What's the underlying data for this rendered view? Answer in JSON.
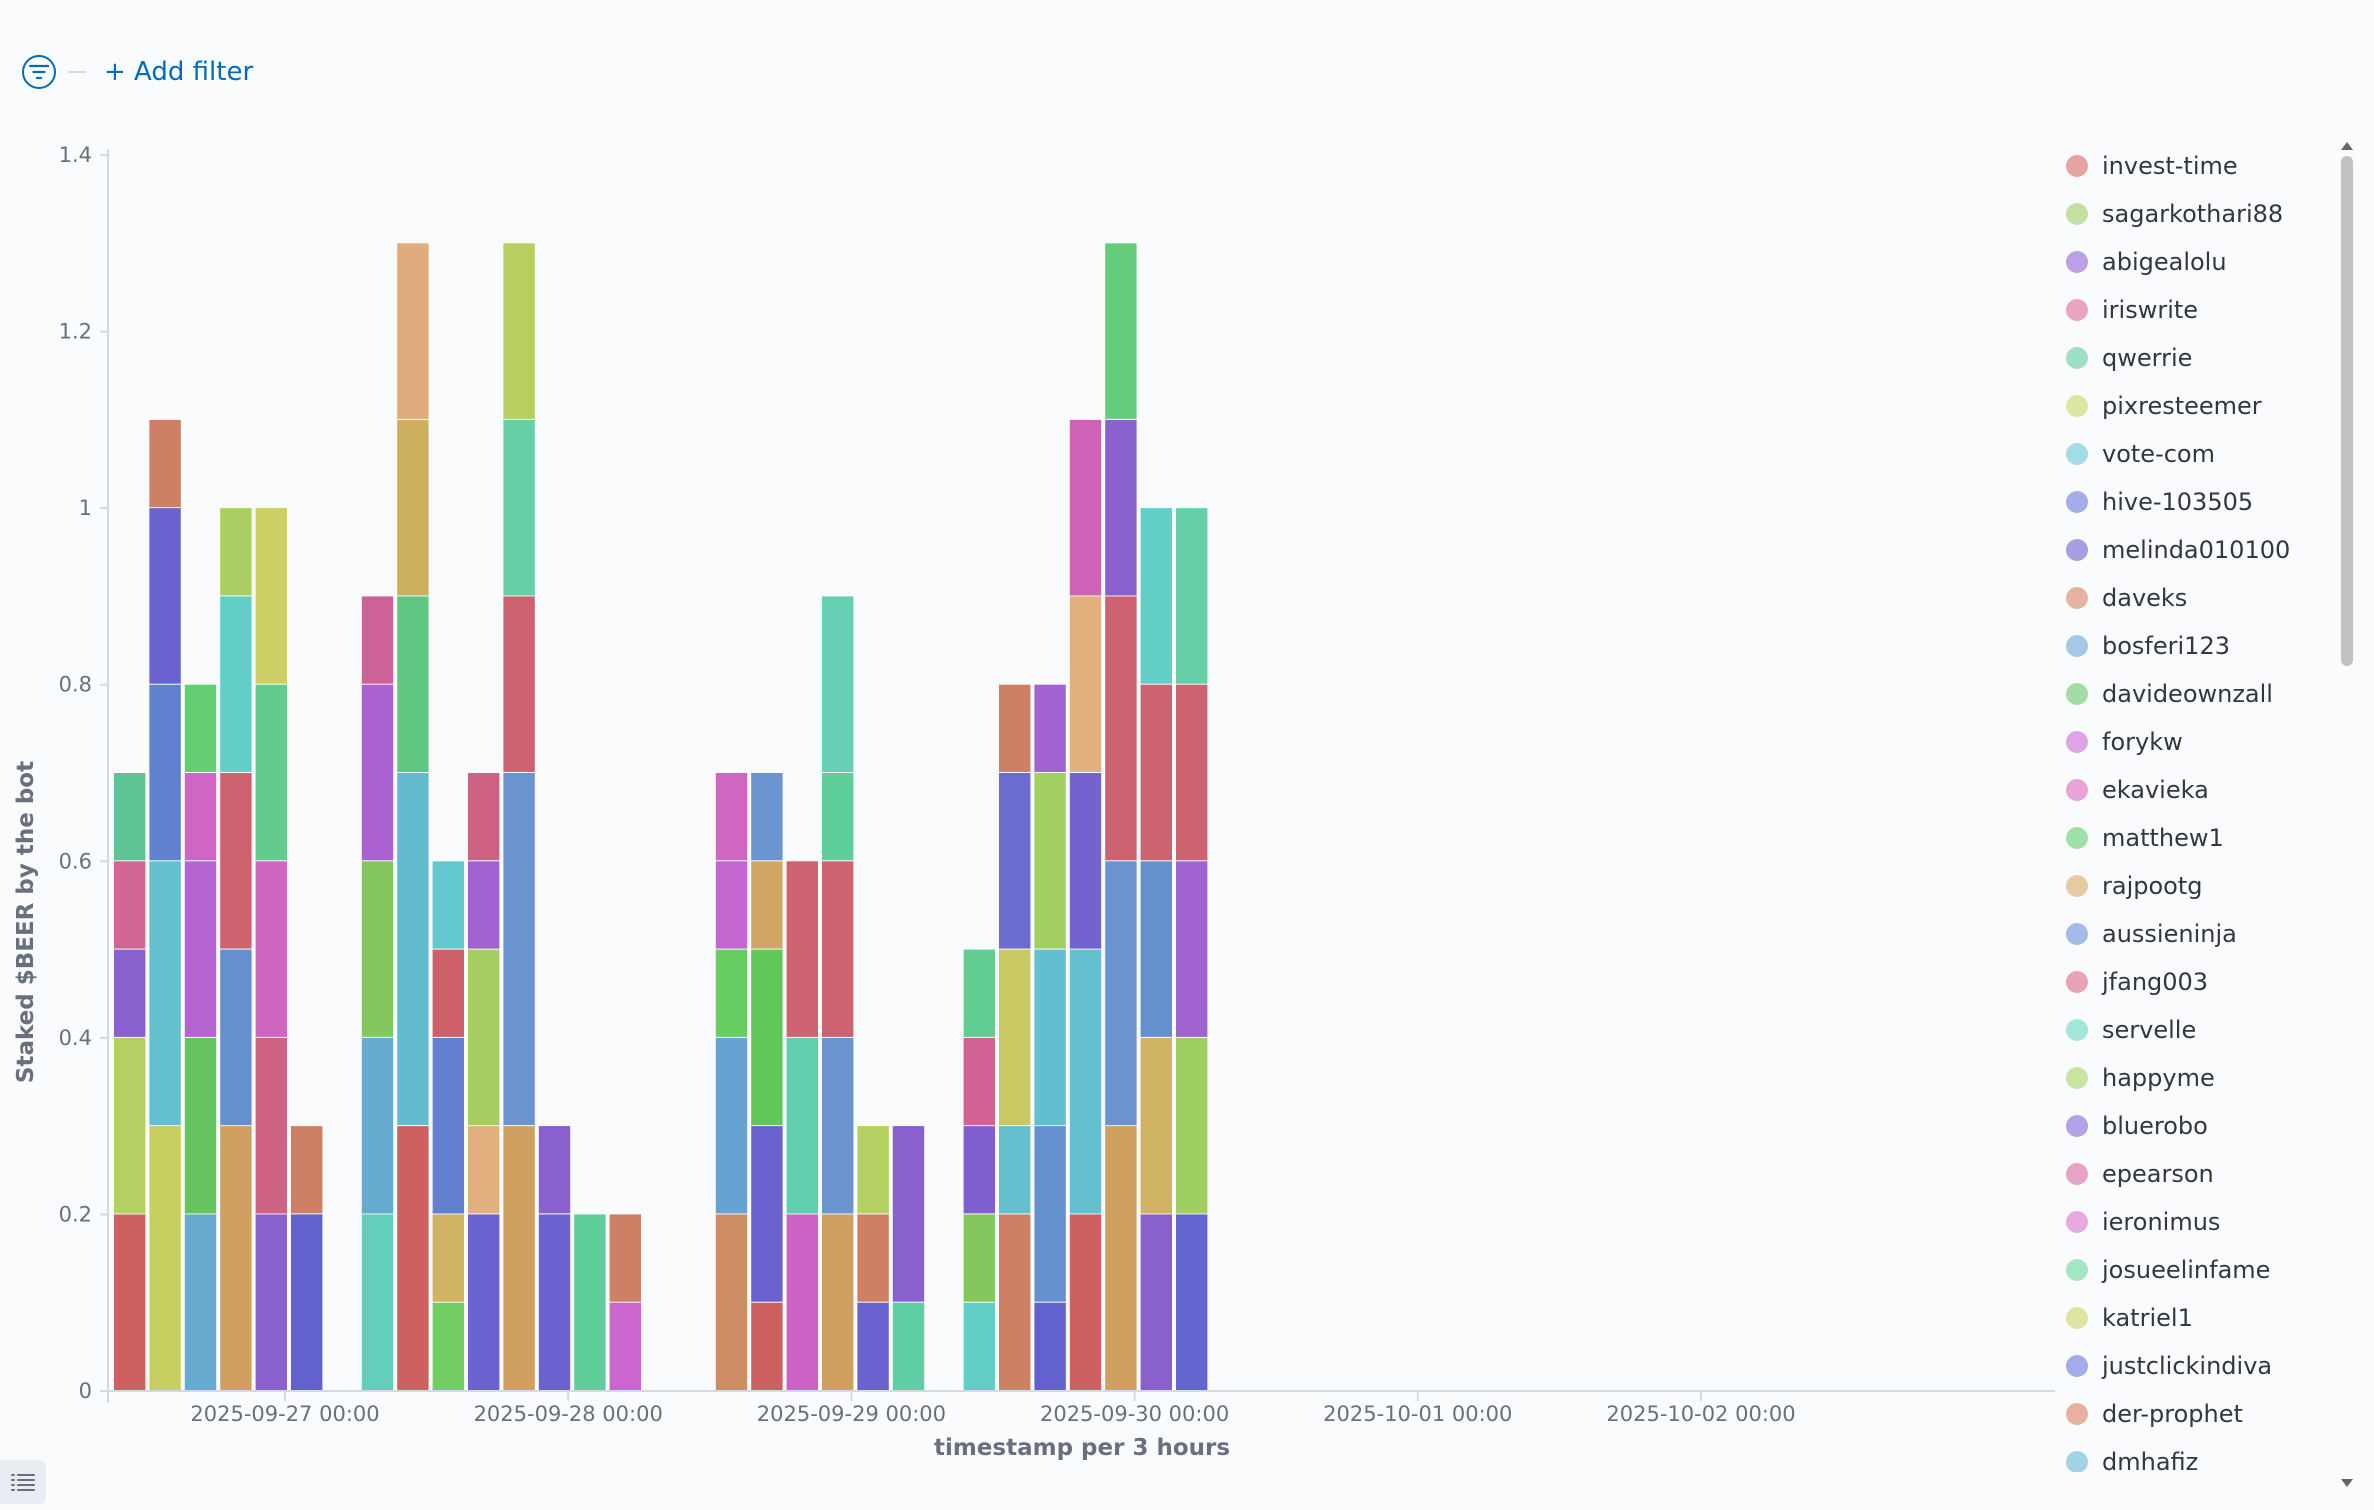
{
  "filter_bar": {
    "add_filter_label": "+ Add filter"
  },
  "chart_data": {
    "type": "bar",
    "stacked": true,
    "xlabel": "timestamp per 3 hours",
    "ylabel": "Staked $BEER by the bot",
    "ylim": [
      0,
      1.4
    ],
    "yticks": [
      "0",
      "0.2",
      "0.4",
      "0.6",
      "0.8",
      "1",
      "1.2",
      "1.4"
    ],
    "xlim": [
      "2025-09-26 09:00",
      "2025-10-03 06:00"
    ],
    "xticks": [
      "2025-09-27 00:00",
      "2025-09-28 00:00",
      "2025-09-29 00:00",
      "2025-09-30 00:00",
      "2025-10-01 00:00",
      "2025-10-02 00:00"
    ],
    "grid": false,
    "legend_position": "right",
    "series_names": [
      "invest-time",
      "sagarkothari88",
      "abigealolu",
      "iriswrite",
      "qwerrie",
      "pixresteemer",
      "vote-com",
      "hive-103505",
      "melinda010100",
      "daveks",
      "bosferi123",
      "davideownzall",
      "forykw",
      "ekavieka",
      "matthew1",
      "rajpootg",
      "aussieninja",
      "jfang003",
      "servelle",
      "happyme",
      "bluerobo",
      "epearson",
      "ieronimus",
      "josueelinfame",
      "katriel1",
      "justclickindiva",
      "der-prophet",
      "dmhafiz"
    ],
    "series_colors": [
      "#e7a39f",
      "#c4e0a0",
      "#bca0e6",
      "#e9a4c2",
      "#9ee0c6",
      "#dde6a3",
      "#a3dbe6",
      "#a3aee8",
      "#a6a0e3",
      "#e6b3a3",
      "#a3c9e6",
      "#a6dca3",
      "#dfa3e8",
      "#e8a3d8",
      "#9fe0a6",
      "#e6caa3",
      "#a3bbe6",
      "#e6a3b3",
      "#a3e6da",
      "#c9e3a0",
      "#b2a3e6",
      "#e6a3c3",
      "#e8a8e0",
      "#a3e6c4",
      "#dfe3a3",
      "#a3ace8",
      "#e8b0a0",
      "#a3d3e6"
    ],
    "bars": [
      {
        "x": "2025-09-26 09:00",
        "segments": [
          {
            "value": 0.2,
            "color": "#cd6160"
          },
          {
            "value": 0.2,
            "color": "#b4cf62"
          },
          {
            "value": 0.1,
            "color": "#8a60cf"
          },
          {
            "value": 0.1,
            "color": "#d26693"
          },
          {
            "value": 0.1,
            "color": "#5ec495"
          }
        ]
      },
      {
        "x": "2025-09-26 12:00",
        "segments": [
          {
            "value": 0.3,
            "color": "#c7cf62"
          },
          {
            "value": 0.3,
            "color": "#64bfcf"
          },
          {
            "value": 0.2,
            "color": "#6182cf"
          },
          {
            "value": 0.2,
            "color": "#6a62cf"
          },
          {
            "value": 0.1,
            "color": "#ce8065"
          }
        ]
      },
      {
        "x": "2025-09-26 15:00",
        "segments": [
          {
            "value": 0.2,
            "color": "#66aacf"
          },
          {
            "value": 0.2,
            "color": "#65c460"
          },
          {
            "value": 0.2,
            "color": "#b463d0"
          },
          {
            "value": 0.1,
            "color": "#d065c6"
          },
          {
            "value": 0.1,
            "color": "#63ce72"
          }
        ]
      },
      {
        "x": "2025-09-26 18:00",
        "segments": [
          {
            "value": 0.3,
            "color": "#d0a060"
          },
          {
            "value": 0.2,
            "color": "#6590cf"
          },
          {
            "value": 0.2,
            "color": "#cd6270"
          },
          {
            "value": 0.2,
            "color": "#63cec6"
          },
          {
            "value": 0.1,
            "color": "#a9cf62"
          }
        ]
      },
      {
        "x": "2025-09-26 21:00",
        "segments": [
          {
            "value": 0.2,
            "color": "#8a60cf"
          },
          {
            "value": 0.2,
            "color": "#cd6282"
          },
          {
            "value": 0.2,
            "color": "#ce66c0"
          },
          {
            "value": 0.2,
            "color": "#61cc8e"
          },
          {
            "value": 0.2,
            "color": "#cccf63"
          }
        ]
      },
      {
        "x": "2025-09-27 00:00",
        "segments": [
          {
            "value": 0.2,
            "color": "#6360cf"
          },
          {
            "value": 0.1,
            "color": "#ce8065"
          }
        ]
      },
      {
        "x": "2025-09-27 03:00",
        "segments": []
      },
      {
        "x": "2025-09-27 06:00",
        "segments": [
          {
            "value": 0.2,
            "color": "#63cebb"
          },
          {
            "value": 0.2,
            "color": "#65aacf"
          },
          {
            "value": 0.2,
            "color": "#84c75f"
          },
          {
            "value": 0.2,
            "color": "#a962cf"
          },
          {
            "value": 0.1,
            "color": "#cd6296"
          }
        ]
      },
      {
        "x": "2025-09-27 09:00",
        "segments": [
          {
            "value": 0.3,
            "color": "#cd6160"
          },
          {
            "value": 0.4,
            "color": "#63bcce"
          },
          {
            "value": 0.2,
            "color": "#60c782"
          },
          {
            "value": 0.2,
            "color": "#cdb05f"
          },
          {
            "value": 0.2,
            "color": "#e0ac7e"
          }
        ]
      },
      {
        "x": "2025-09-27 12:00",
        "segments": [
          {
            "value": 0.1,
            "color": "#73cf61"
          },
          {
            "value": 0.1,
            "color": "#d0b464"
          },
          {
            "value": 0.2,
            "color": "#6380cf"
          },
          {
            "value": 0.1,
            "color": "#cd6068"
          },
          {
            "value": 0.1,
            "color": "#63c9d0"
          }
        ]
      },
      {
        "x": "2025-09-27 15:00",
        "segments": [
          {
            "value": 0.2,
            "color": "#6a62cf"
          },
          {
            "value": 0.1,
            "color": "#e1b07e"
          },
          {
            "value": 0.2,
            "color": "#a6cd62"
          },
          {
            "value": 0.1,
            "color": "#a063cf"
          },
          {
            "value": 0.1,
            "color": "#cd6282"
          }
        ]
      },
      {
        "x": "2025-09-27 18:00",
        "segments": [
          {
            "value": 0.3,
            "color": "#d0a060"
          },
          {
            "value": 0.4,
            "color": "#6a93d0"
          },
          {
            "value": 0.2,
            "color": "#cd6270"
          },
          {
            "value": 0.2,
            "color": "#66cfa8"
          },
          {
            "value": 0.2,
            "color": "#b7cf61"
          }
        ]
      },
      {
        "x": "2025-09-27 21:00",
        "segments": [
          {
            "value": 0.2,
            "color": "#6a62cf"
          },
          {
            "value": 0.1,
            "color": "#8a60cf"
          }
        ]
      },
      {
        "x": "2025-09-28 00:00",
        "segments": [
          {
            "value": 0.2,
            "color": "#60ce9a"
          }
        ]
      },
      {
        "x": "2025-09-28 03:00",
        "segments": [
          {
            "value": 0.1,
            "color": "#cc65cd"
          },
          {
            "value": 0.1,
            "color": "#ce8065"
          }
        ]
      },
      {
        "x": "2025-09-28 06:00",
        "segments": []
      },
      {
        "x": "2025-09-28 09:00",
        "segments": []
      },
      {
        "x": "2025-09-28 12:00",
        "segments": [
          {
            "value": 0.2,
            "color": "#ce8e65"
          },
          {
            "value": 0.2,
            "color": "#66a3d2"
          },
          {
            "value": 0.1,
            "color": "#67cf62"
          },
          {
            "value": 0.1,
            "color": "#c466cf"
          },
          {
            "value": 0.1,
            "color": "#d066bf"
          }
        ]
      },
      {
        "x": "2025-09-28 15:00",
        "segments": [
          {
            "value": 0.1,
            "color": "#cd6160"
          },
          {
            "value": 0.2,
            "color": "#6a62cf"
          },
          {
            "value": 0.2,
            "color": "#60c759"
          },
          {
            "value": 0.1,
            "color": "#d0a665"
          },
          {
            "value": 0.1,
            "color": "#6a93d0"
          }
        ]
      },
      {
        "x": "2025-09-28 18:00",
        "segments": [
          {
            "value": 0.2,
            "color": "#cd62c6"
          },
          {
            "value": 0.2,
            "color": "#60ceaf"
          },
          {
            "value": 0.2,
            "color": "#cd6270"
          }
        ]
      },
      {
        "x": "2025-09-28 21:00",
        "segments": [
          {
            "value": 0.2,
            "color": "#d0a060"
          },
          {
            "value": 0.2,
            "color": "#6a93d0"
          },
          {
            "value": 0.2,
            "color": "#cd6270"
          },
          {
            "value": 0.1,
            "color": "#60ce9a"
          },
          {
            "value": 0.2,
            "color": "#66cfb4"
          }
        ]
      },
      {
        "x": "2025-09-29 00:00",
        "segments": [
          {
            "value": 0.1,
            "color": "#6a62cf"
          },
          {
            "value": 0.1,
            "color": "#ce8065"
          },
          {
            "value": 0.1,
            "color": "#b4cf62"
          }
        ]
      },
      {
        "x": "2025-09-29 03:00",
        "segments": [
          {
            "value": 0.1,
            "color": "#60cea4"
          },
          {
            "value": 0.2,
            "color": "#8a60cf"
          }
        ]
      },
      {
        "x": "2025-09-29 06:00",
        "segments": []
      },
      {
        "x": "2025-09-29 09:00",
        "segments": [
          {
            "value": 0.1,
            "color": "#63cec6"
          },
          {
            "value": 0.1,
            "color": "#84c75f"
          },
          {
            "value": 0.1,
            "color": "#8060cf"
          },
          {
            "value": 0.1,
            "color": "#d06294"
          },
          {
            "value": 0.1,
            "color": "#61cd93"
          }
        ]
      },
      {
        "x": "2025-09-29 12:00",
        "segments": [
          {
            "value": 0.2,
            "color": "#ce8065"
          },
          {
            "value": 0.1,
            "color": "#64bfcf"
          },
          {
            "value": 0.2,
            "color": "#c8c962"
          },
          {
            "value": 0.2,
            "color": "#6a6dcf"
          },
          {
            "value": 0.1,
            "color": "#ce8065"
          }
        ]
      },
      {
        "x": "2025-09-29 15:00",
        "segments": [
          {
            "value": 0.1,
            "color": "#6360cf"
          },
          {
            "value": 0.2,
            "color": "#6592cf"
          },
          {
            "value": 0.2,
            "color": "#63bfcf"
          },
          {
            "value": 0.2,
            "color": "#a2cf62"
          },
          {
            "value": 0.1,
            "color": "#a063cf"
          }
        ]
      },
      {
        "x": "2025-09-29 18:00",
        "segments": [
          {
            "value": 0.2,
            "color": "#cd6160"
          },
          {
            "value": 0.3,
            "color": "#64bfcf"
          },
          {
            "value": 0.2,
            "color": "#7662cf"
          },
          {
            "value": 0.2,
            "color": "#e1b07e"
          },
          {
            "value": 0.2,
            "color": "#cd62b6"
          }
        ]
      },
      {
        "x": "2025-09-29 21:00",
        "segments": [
          {
            "value": 0.3,
            "color": "#d0a060"
          },
          {
            "value": 0.3,
            "color": "#6a93d0"
          },
          {
            "value": 0.3,
            "color": "#cd6270"
          },
          {
            "value": 0.2,
            "color": "#8a60cf"
          },
          {
            "value": 0.2,
            "color": "#66cd7d"
          }
        ]
      },
      {
        "x": "2025-09-30 00:00",
        "segments": [
          {
            "value": 0.2,
            "color": "#8a60cf"
          },
          {
            "value": 0.2,
            "color": "#d0b464"
          },
          {
            "value": 0.2,
            "color": "#6590cf"
          },
          {
            "value": 0.2,
            "color": "#cd6270"
          },
          {
            "value": 0.2,
            "color": "#63cec6"
          }
        ]
      },
      {
        "x": "2025-09-30 03:00",
        "segments": [
          {
            "value": 0.2,
            "color": "#6366cf"
          },
          {
            "value": 0.2,
            "color": "#9fcf60"
          },
          {
            "value": 0.2,
            "color": "#a063cf"
          },
          {
            "value": 0.2,
            "color": "#cd6270"
          },
          {
            "value": 0.2,
            "color": "#66cfa8"
          }
        ]
      }
    ]
  }
}
